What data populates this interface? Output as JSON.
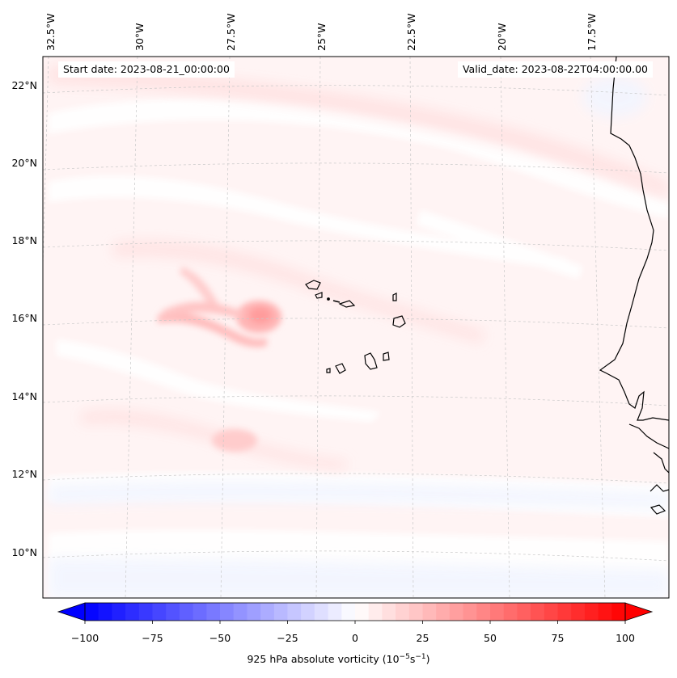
{
  "map": {
    "start_date": "Start date: 2023-08-21_00:00:00",
    "valid_date": "Valid_date: 2023-08-22T04:00:00.00",
    "longitude_labels": [
      "32.5°W",
      "30°W",
      "27.5°W",
      "25°W",
      "22.5°W",
      "20°W",
      "17.5°W"
    ],
    "latitude_labels": [
      "22°N",
      "20°N",
      "18°N",
      "16°N",
      "14°N",
      "12°N",
      "10°N"
    ],
    "features": [
      "Cape Verde islands",
      "West African coastline",
      "vorticity maximum near 26°W 16°N"
    ]
  },
  "colorbar": {
    "ticks": [
      "−100",
      "−75",
      "−50",
      "−25",
      "0",
      "25",
      "50",
      "75",
      "100"
    ],
    "label": "925 hPa absolute vorticity (10",
    "label_exp1": "−5",
    "label_mid": "s",
    "label_exp2": "−1",
    "label_end": ")",
    "min": -100,
    "max": 100,
    "colors": {
      "negative": "#0000ff",
      "zero": "#ffffff",
      "positive": "#ff0000"
    }
  }
}
